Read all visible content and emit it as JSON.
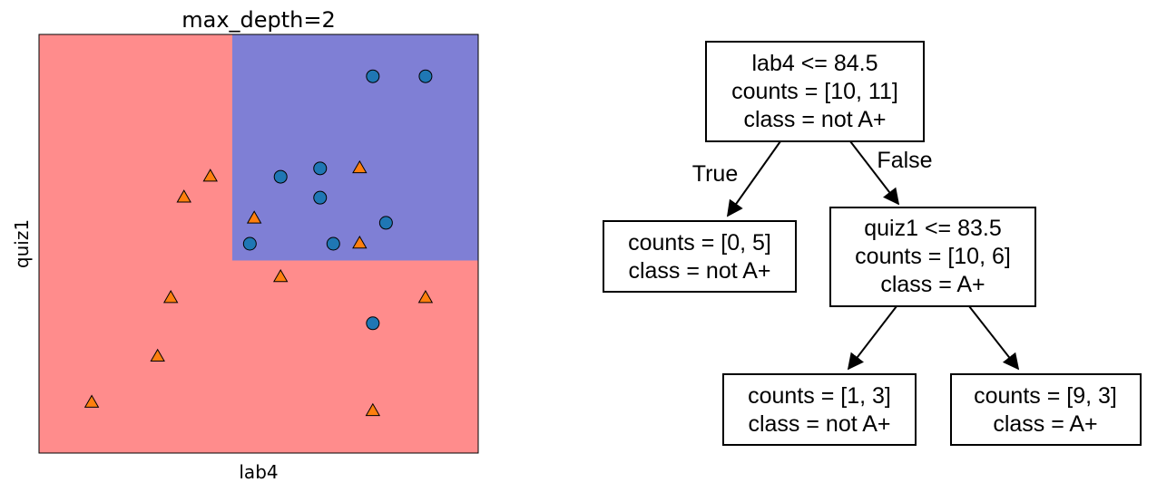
{
  "plot": {
    "title": "max_depth=2",
    "xlabel": "lab4",
    "ylabel": "quiz1",
    "colors": {
      "not_a_plus_region": "#ff8c8c",
      "a_plus_region": "#7f7fd5",
      "circle": "#1f77b4",
      "triangle": "#ff7f0e"
    }
  },
  "chart_data": {
    "type": "scatter",
    "title": "max_depth=2",
    "xlabel": "lab4",
    "ylabel": "quiz1",
    "xlim": [
      0,
      100
    ],
    "ylim": [
      0,
      100
    ],
    "split_lab4": 44,
    "split_quiz1": 46,
    "series": [
      {
        "marker": "circle",
        "points": [
          [
            76,
            90
          ],
          [
            88,
            90
          ],
          [
            55,
            66
          ],
          [
            64,
            68
          ],
          [
            64,
            61
          ],
          [
            79,
            55
          ],
          [
            48,
            50
          ],
          [
            67,
            50
          ],
          [
            76,
            31
          ]
        ]
      },
      {
        "marker": "triangle",
        "points": [
          [
            39,
            66
          ],
          [
            33,
            61
          ],
          [
            73,
            68
          ],
          [
            49,
            56
          ],
          [
            73,
            50
          ],
          [
            55,
            42
          ],
          [
            30,
            37
          ],
          [
            88,
            37
          ],
          [
            27,
            23
          ],
          [
            12,
            12
          ],
          [
            76,
            10
          ]
        ]
      }
    ]
  },
  "tree": {
    "root": {
      "lines": [
        "lab4 <= 84.5",
        "counts = [10, 11]",
        "class = not A+"
      ]
    },
    "left": {
      "lines": [
        "counts = [0, 5]",
        "class = not A+"
      ]
    },
    "right": {
      "lines": [
        "quiz1 <= 83.5",
        "counts = [10, 6]",
        "class = A+"
      ]
    },
    "right_left": {
      "lines": [
        "counts = [1, 3]",
        "class = not A+"
      ]
    },
    "right_right": {
      "lines": [
        "counts = [9, 3]",
        "class = A+"
      ]
    },
    "true_label": "True",
    "false_label": "False"
  }
}
